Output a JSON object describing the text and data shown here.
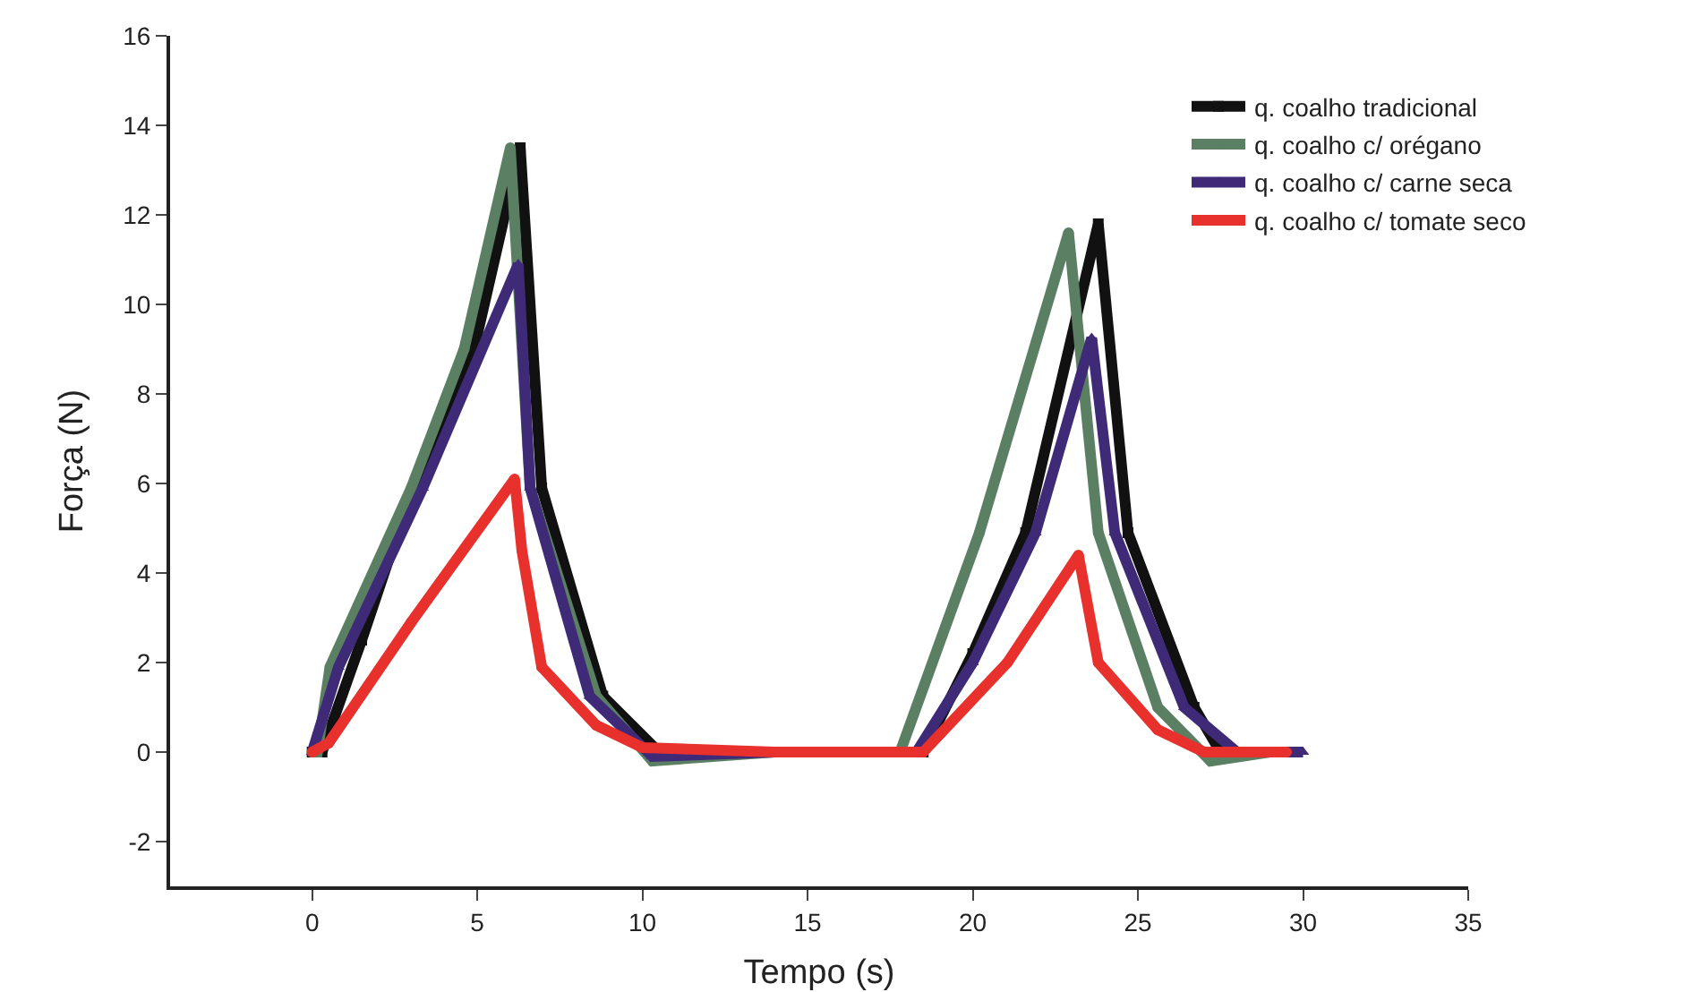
{
  "chart_data": {
    "type": "line",
    "xlabel": "Tempo (s)",
    "ylabel": "Força (N)",
    "xlim": [
      -4.3,
      35
    ],
    "xticks": [
      0,
      5,
      10,
      15,
      20,
      25,
      30,
      35
    ],
    "ylim": [
      -3,
      16
    ],
    "yticks": [
      -2,
      0,
      2,
      4,
      6,
      8,
      10,
      12,
      14,
      16
    ],
    "grid": false,
    "legend": "top right",
    "series": [
      {
        "name": "q. coalho tradicional",
        "color": "#111111",
        "marker": "square",
        "x": [
          0,
          0.3,
          1.5,
          3,
          4.9,
          6.3,
          6.95,
          8.8,
          10.5,
          14,
          18,
          18.5,
          20,
          21.6,
          23.8,
          24.7,
          26.7,
          27.5,
          29.8
        ],
        "values": [
          0,
          0,
          2.5,
          5.8,
          9,
          13.5,
          5.9,
          1.25,
          0,
          0,
          0,
          0,
          2.2,
          4.9,
          11.8,
          4.9,
          1,
          0,
          0
        ]
      },
      {
        "name": "q. coalho c/ orégano",
        "color": "#5a7f62",
        "marker": "circle",
        "x": [
          0,
          0.16,
          0.54,
          3,
          4.6,
          6,
          6.6,
          8.6,
          10.3,
          14,
          17.8,
          20.2,
          22.9,
          23.8,
          25.6,
          27.2,
          29
        ],
        "values": [
          0,
          0,
          1.9,
          5.9,
          9,
          13.5,
          5.9,
          1.25,
          -0.2,
          0,
          0,
          4.9,
          11.6,
          4.9,
          1,
          -0.2,
          0
        ]
      },
      {
        "name": "q. coalho c/ carne seca",
        "color": "#3f2a78",
        "marker": "triangle",
        "x": [
          0,
          0.8,
          3.35,
          6.24,
          6.6,
          8.4,
          10.3,
          14,
          18.3,
          20,
          21.9,
          23.6,
          24.3,
          26.4,
          28,
          30
        ],
        "values": [
          0,
          1.9,
          5.9,
          10.9,
          5.9,
          1.25,
          -0.1,
          0,
          0,
          2,
          4.9,
          9.25,
          4.9,
          1,
          0,
          0
        ]
      },
      {
        "name": "q. coalho c/ tomate seco",
        "color": "#e8302c",
        "marker": "circle",
        "x": [
          0,
          0.5,
          3,
          6.13,
          6.35,
          6.95,
          8.6,
          10,
          14,
          18.5,
          21.05,
          23.2,
          23.8,
          25.6,
          27,
          29.5
        ],
        "values": [
          0,
          0.2,
          2.9,
          6.1,
          4.5,
          1.9,
          0.6,
          0.1,
          0,
          0,
          2,
          4.4,
          2,
          0.5,
          0,
          0
        ]
      }
    ]
  }
}
